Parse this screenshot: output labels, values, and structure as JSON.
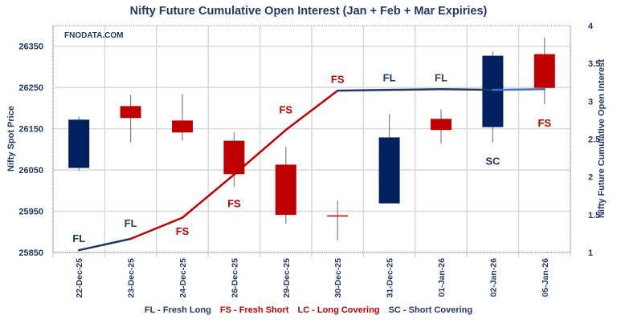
{
  "chart_data": {
    "type": "candlestick+line",
    "title": "Nifty Future Cumulative Open Interest (Jan  + Feb + Mar Expiries)",
    "watermark": "FNODATA.COM",
    "ylabel": "Nifty Spot Price",
    "y2label": "Nifty Future Cumulative Open Interest",
    "ylim": [
      25850,
      26400
    ],
    "yticks": [
      "25850",
      "25950",
      "26050",
      "26150",
      "26250",
      "26350"
    ],
    "y2lim": [
      1,
      4
    ],
    "y2ticks": [
      "1",
      "1.5",
      "2",
      "2.5",
      "3",
      "3.5",
      "4"
    ],
    "grid": true,
    "categories": [
      "22-Dec-25",
      "23-Dec-25",
      "24-Dec-25",
      "26-Dec-25",
      "29-Dec-25",
      "30-Dec-25",
      "31-Dec-25",
      "01-Jan-26",
      "02-Jan-26",
      "05-Jan-26"
    ],
    "candles": [
      {
        "open": 26055,
        "high": 26179,
        "low": 26048,
        "close": 26172
      },
      {
        "open": 26205,
        "high": 26232,
        "low": 26117,
        "close": 26176
      },
      {
        "open": 26170,
        "high": 26234,
        "low": 26121,
        "close": 26141
      },
      {
        "open": 26121,
        "high": 26141,
        "low": 26009,
        "close": 26040
      },
      {
        "open": 26063,
        "high": 26106,
        "low": 25920,
        "close": 25941
      },
      {
        "open": 25940,
        "high": 25976,
        "low": 25879,
        "close": 25939
      },
      {
        "open": 25969,
        "high": 26185,
        "low": 25969,
        "close": 26129
      },
      {
        "open": 26174,
        "high": 26197,
        "low": 26114,
        "close": 26147
      },
      {
        "open": 26154,
        "high": 26338,
        "low": 26117,
        "close": 26327
      },
      {
        "open": 26331,
        "high": 26371,
        "low": 26210,
        "close": 26249
      }
    ],
    "open_interest": [
      1.03,
      1.18,
      1.46,
      2.03,
      2.62,
      3.14,
      3.15,
      3.16,
      3.15,
      3.16
    ],
    "oi_segment_colors": [
      "#1f3864",
      "#c00000",
      "#c00000",
      "#c00000",
      "#c00000",
      "#1f3864",
      "#1f3864",
      "#1f3864",
      "#4472c4"
    ],
    "annotations": [
      {
        "text": "FL",
        "category": "22-Dec-25",
        "price": 25885,
        "color": "#1f3864"
      },
      {
        "text": "FL",
        "category": "23-Dec-25",
        "price": 25922,
        "color": "#1f3864"
      },
      {
        "text": "FS",
        "category": "24-Dec-25",
        "price": 25902,
        "color": "#c00000"
      },
      {
        "text": "FS",
        "category": "26-Dec-25",
        "price": 25970,
        "color": "#c00000"
      },
      {
        "text": "FS",
        "category": "29-Dec-25",
        "price": 26197,
        "color": "#c00000"
      },
      {
        "text": "FS",
        "category": "30-Dec-25",
        "price": 26271,
        "color": "#c00000"
      },
      {
        "text": "FL",
        "category": "31-Dec-25",
        "price": 26275,
        "color": "#1f3864"
      },
      {
        "text": "FL",
        "category": "01-Jan-26",
        "price": 26275,
        "color": "#404040"
      },
      {
        "text": "SC",
        "category": "02-Jan-26",
        "price": 26073,
        "color": "#1f3864"
      },
      {
        "text": "FS",
        "category": "05-Jan-26",
        "price": 26165,
        "color": "#c00000"
      }
    ],
    "colors": {
      "up": "#002060",
      "down": "#c00000",
      "wick": "#808080",
      "axis_text": "#1f3864"
    }
  },
  "legend": [
    {
      "text": "FL - Fresh Long",
      "color": "#1f3864"
    },
    {
      "text": "FS - Fresh Short",
      "color": "#c00000"
    },
    {
      "text": "LC - Long Covering",
      "color": "#c00000"
    },
    {
      "text": "SC - Short Covering",
      "color": "#1f3864"
    }
  ]
}
